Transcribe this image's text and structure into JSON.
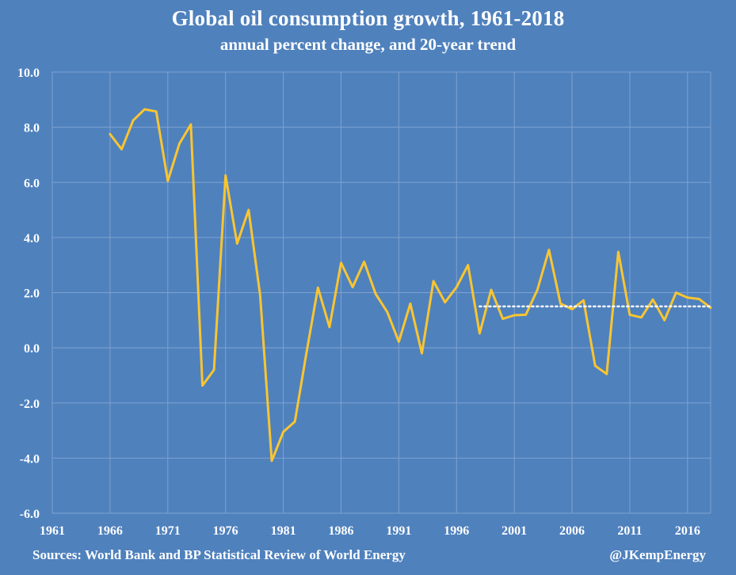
{
  "colors": {
    "background": "#4f81bd",
    "grid": "#7fa2d0",
    "series": "#f9c531",
    "trend": "#ffffff",
    "text": "#ffffff"
  },
  "footer": {
    "source": "Sources: World Bank and BP Statistical Review of World Energy",
    "handle": "@JKempEnergy"
  },
  "chart_data": {
    "type": "line",
    "title": "Global oil consumption growth, 1961-2018",
    "subtitle": "annual percent change, and 20-year trend",
    "xlabel": "",
    "ylabel": "",
    "xlim": [
      1961,
      2018
    ],
    "ylim": [
      -6.0,
      10.0
    ],
    "y_ticks": [
      "10.0",
      "8.0",
      "6.0",
      "4.0",
      "2.0",
      "0.0",
      "-2.0",
      "-4.0",
      "-6.0"
    ],
    "x_ticks": [
      "1961",
      "1966",
      "1971",
      "1976",
      "1981",
      "1986",
      "1991",
      "1996",
      "2001",
      "2006",
      "2011",
      "2016"
    ],
    "grid": true,
    "legend": "none",
    "series": [
      {
        "style": "solid",
        "x": [
          1966,
          1967,
          1968,
          1969,
          1970,
          1971,
          1972,
          1973,
          1974,
          1975,
          1976,
          1977,
          1978,
          1979,
          1980,
          1981,
          1982,
          1983,
          1984,
          1985,
          1986,
          1987,
          1988,
          1989,
          1990,
          1991,
          1992,
          1993,
          1994,
          1995,
          1996,
          1997,
          1998,
          1999,
          2000,
          2001,
          2002,
          2003,
          2004,
          2005,
          2006,
          2007,
          2008,
          2009,
          2010,
          2011,
          2012,
          2013,
          2014,
          2015,
          2016,
          2017,
          2018
        ],
        "y": [
          7.75,
          7.2,
          8.25,
          8.65,
          8.57,
          6.05,
          7.4,
          8.1,
          -1.37,
          -0.8,
          6.25,
          3.78,
          5.0,
          1.9,
          -4.1,
          -3.05,
          -2.68,
          -0.2,
          2.18,
          0.75,
          3.08,
          2.2,
          3.12,
          1.95,
          1.3,
          0.22,
          1.6,
          -0.2,
          2.42,
          1.65,
          2.2,
          3.0,
          0.52,
          2.1,
          1.05,
          1.18,
          1.2,
          2.1,
          3.55,
          1.6,
          1.4,
          1.72,
          -0.65,
          -0.95,
          3.48,
          1.2,
          1.1,
          1.75,
          1.0,
          2.0,
          1.82,
          1.77,
          1.45
        ]
      },
      {
        "style": "dotted",
        "x": [
          1998,
          2018
        ],
        "y": [
          1.5,
          1.5
        ]
      }
    ]
  }
}
